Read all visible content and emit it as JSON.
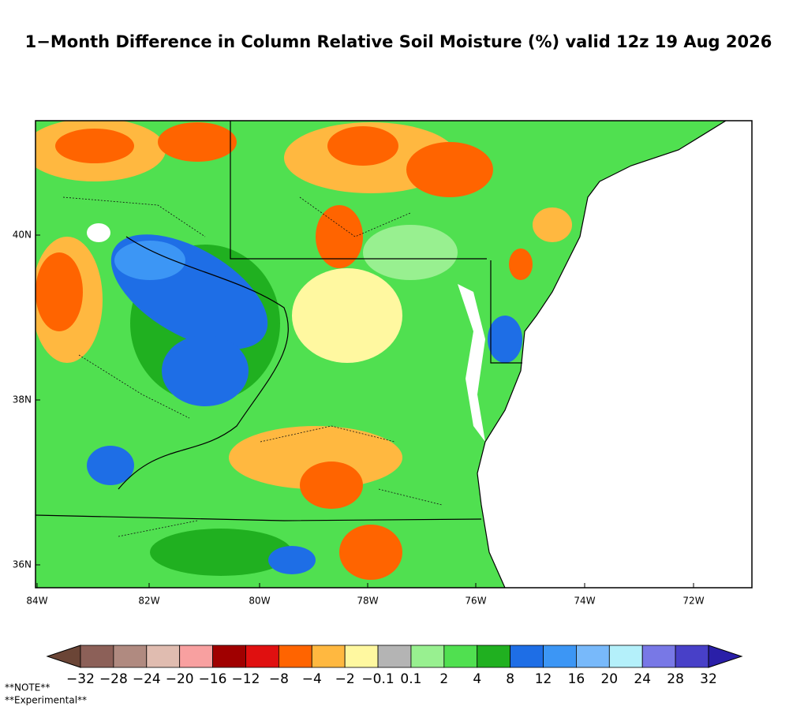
{
  "title": "1−Month Difference in Column Relative Soil Moisture (%) valid 12z 19 Aug 2026",
  "lon_ticks": [
    "84W",
    "82W",
    "80W",
    "78W",
    "76W",
    "74W",
    "72W"
  ],
  "lat_ticks": [
    "40N",
    "38N",
    "36N"
  ],
  "colorbar": {
    "under_color": "#6b4536",
    "over_color": "#2a1fa8",
    "colors": [
      "#8c6058",
      "#b08a80",
      "#e0bcb0",
      "#f8a0a0",
      "#a00000",
      "#e01010",
      "#ff6400",
      "#ffb840",
      "#fff8a0",
      "#b4b4b4",
      "#98f090",
      "#50e050",
      "#20b020",
      "#1e6ee6",
      "#3c96f5",
      "#78b9fa",
      "#b4f0fa",
      "#7878e6",
      "#4840c8"
    ],
    "labels": [
      "−32",
      "−28",
      "−24",
      "−20",
      "−16",
      "−12",
      "−8",
      "−4",
      "−2",
      "−0.1",
      "0.1",
      "2",
      "4",
      "8",
      "12",
      "16",
      "20",
      "24",
      "28",
      "32"
    ]
  },
  "notes": [
    "**NOTE**",
    "**Experimental**"
  ]
}
